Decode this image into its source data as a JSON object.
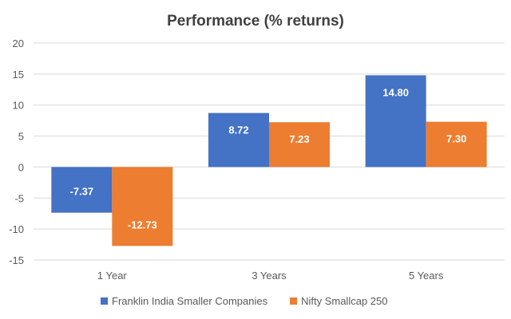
{
  "chart_data": {
    "type": "bar",
    "title": "Performance  (% returns)",
    "categories": [
      "1 Year",
      "3 Years",
      "5 Years"
    ],
    "series": [
      {
        "name": "Franklin India Smaller Companies",
        "values": [
          -7.37,
          8.72,
          14.8
        ],
        "labels": [
          "-7.37",
          "8.72",
          "14.80"
        ],
        "color": "#4472c4"
      },
      {
        "name": "Nifty Smallcap 250",
        "values": [
          -12.73,
          7.23,
          7.3
        ],
        "labels": [
          "-12.73",
          "7.23",
          "7.30"
        ],
        "color": "#ed7d31"
      }
    ],
    "y_ticks": [
      "20",
      "15",
      "10",
      "5",
      "0",
      "-5",
      "-10",
      "-15"
    ],
    "ylim": [
      -15,
      20
    ],
    "grid": true,
    "legend_position": "bottom"
  }
}
